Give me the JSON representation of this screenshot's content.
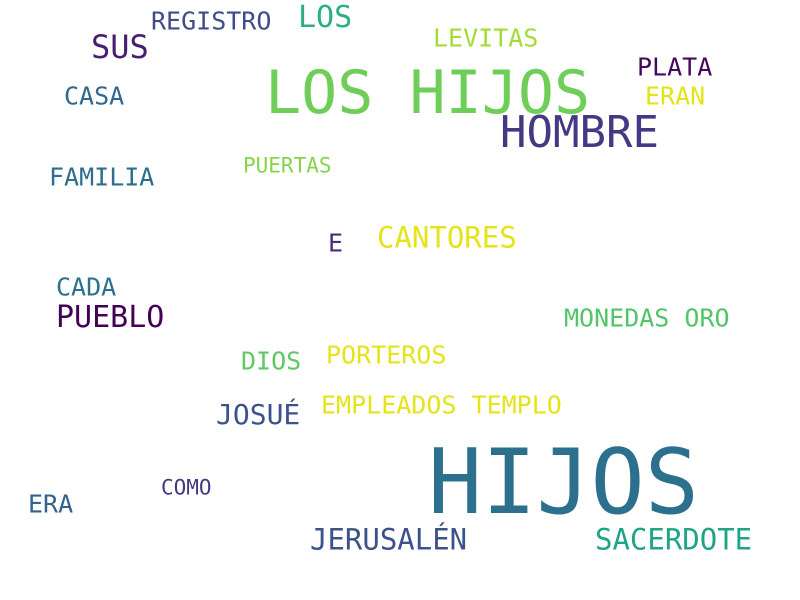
{
  "words": {
    "registro": {
      "text": "REGISTRO",
      "color": "#3e4c8a"
    },
    "los": {
      "text": "LOS",
      "color": "#2ab07f"
    },
    "levitas": {
      "text": "LEVITAS",
      "color": "#a5db36"
    },
    "sus": {
      "text": "SUS",
      "color": "#481f70"
    },
    "plata": {
      "text": "PLATA",
      "color": "#46085c"
    },
    "los_hijos": {
      "text": "LOS HIJOS",
      "color": "#6ece58"
    },
    "casa": {
      "text": "CASA",
      "color": "#31688e"
    },
    "eran": {
      "text": "ERAN",
      "color": "#e2e418"
    },
    "hombre": {
      "text": "HOMBRE",
      "color": "#443983"
    },
    "puertas": {
      "text": "PUERTAS",
      "color": "#86d549"
    },
    "familia": {
      "text": "FAMILIA",
      "color": "#2e6e8e"
    },
    "cantores": {
      "text": "CANTORES",
      "color": "#e5e419"
    },
    "e": {
      "text": "E",
      "color": "#472f7d"
    },
    "cada": {
      "text": "CADA",
      "color": "#2c728e"
    },
    "pueblo": {
      "text": "PUEBLO",
      "color": "#440154"
    },
    "monedas_oro": {
      "text": "MONEDAS ORO",
      "color": "#52c569"
    },
    "porteros": {
      "text": "PORTEROS",
      "color": "#e5e419"
    },
    "dios": {
      "text": "DIOS",
      "color": "#5ec962"
    },
    "empleados_templo": {
      "text": "EMPLEADOS TEMPLO",
      "color": "#e5e419"
    },
    "josue": {
      "text": "JOSUÉ",
      "color": "#3b528b"
    },
    "hijos": {
      "text": "HIJOS",
      "color": "#2d708e"
    },
    "como": {
      "text": "COMO",
      "color": "#443a83"
    },
    "era": {
      "text": "ERA",
      "color": "#33638d"
    },
    "jerusalen": {
      "text": "JERUSALÉN",
      "color": "#3b528b"
    },
    "sacerdote": {
      "text": "SACERDOTE",
      "color": "#20a486"
    }
  }
}
